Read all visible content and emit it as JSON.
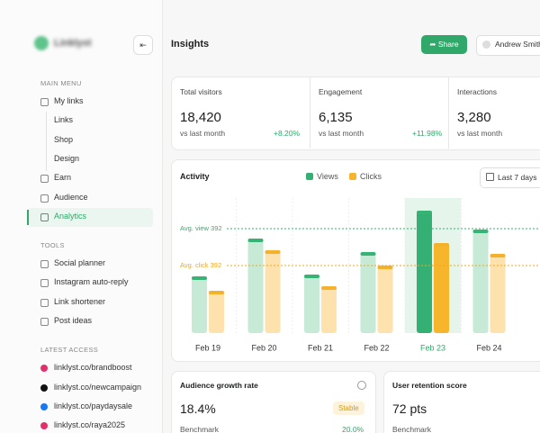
{
  "sidebar": {
    "brand": "Linklyst",
    "sections": [
      {
        "title": "MAIN MENU",
        "items": [
          {
            "label": "My links"
          },
          {
            "label": "Links",
            "sub": true
          },
          {
            "label": "Shop",
            "sub": true
          },
          {
            "label": "Design",
            "sub": true
          },
          {
            "label": "Earn"
          },
          {
            "label": "Audience"
          },
          {
            "label": "Analytics",
            "active": true
          }
        ]
      },
      {
        "title": "TOOLS",
        "items": [
          {
            "label": "Social planner"
          },
          {
            "label": "Instagram auto-reply"
          },
          {
            "label": "Link shortener"
          },
          {
            "label": "Post ideas"
          }
        ]
      },
      {
        "title": "LATEST ACCESS",
        "items": [
          {
            "label": "linklyst.co/brandboost"
          },
          {
            "label": "linklyst.co/newcampaign"
          },
          {
            "label": "linklyst.co/paydaysale"
          },
          {
            "label": "linklyst.co/raya2025"
          }
        ]
      }
    ]
  },
  "header": {
    "title": "Insights",
    "share": "Share",
    "user": "Andrew Smith"
  },
  "stats": [
    {
      "label": "Total visitors",
      "value": "18,420",
      "sub": "vs last month",
      "delta": "+8.20%"
    },
    {
      "label": "Engagement",
      "value": "6,135",
      "sub": "vs last month",
      "delta": "+11.98%"
    },
    {
      "label": "Interactions",
      "value": "3,280",
      "sub": "vs last month"
    }
  ],
  "chart_data": {
    "type": "bar",
    "title": "Activity",
    "range": "Last 7 days",
    "categories": [
      "Feb 19",
      "Feb 20",
      "Feb 21",
      "Feb 22",
      "Feb 23",
      "Feb 24"
    ],
    "series": [
      {
        "name": "Views",
        "color": "#34b074",
        "values": [
          63,
          105,
          65,
          90,
          136,
          115
        ]
      },
      {
        "name": "Clicks",
        "color": "#f7b52c",
        "values": [
          47,
          92,
          52,
          75,
          100,
          88
        ]
      }
    ],
    "ylim": [
      0,
      150
    ],
    "highlight_index": 4,
    "annotations": [
      "Avg. view 392",
      "Avg. click 392"
    ]
  },
  "cards": [
    {
      "title": "Audience growth rate",
      "value": "18.4%",
      "badge": "Stable",
      "sub": "Benchmark",
      "sub_value": "20.0%"
    },
    {
      "title": "User retention score",
      "value": "72 pts",
      "sub": "Benchmark"
    }
  ]
}
